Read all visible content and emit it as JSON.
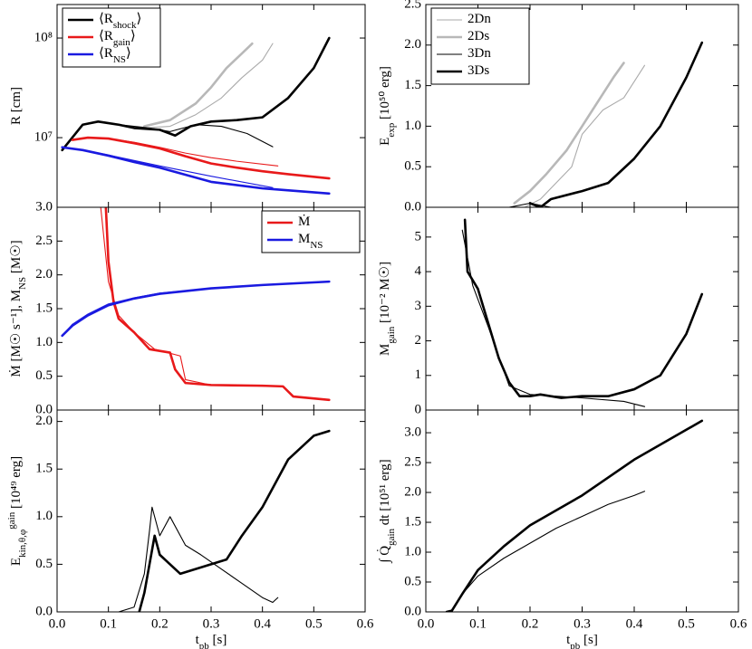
{
  "chart_data": [
    {
      "type": "line",
      "log_y": true,
      "ylabel": [
        {
          "text": "R [cm]"
        }
      ],
      "xlim": [
        0,
        0.6
      ],
      "xticks": [
        0,
        0.1,
        0.2,
        0.3,
        0.4,
        0.5,
        0.6
      ],
      "ylim": [
        2000000,
        217000000
      ],
      "yticks": [
        {
          "value": 10000000,
          "label": "10⁷"
        },
        {
          "value": 100000000,
          "label": "10⁸"
        }
      ],
      "legend": {
        "loc": "upper left",
        "entries": [
          {
            "name": [
              {
                "text": "⟨R"
              },
              {
                "text": "shock",
                "shift": "sub"
              },
              {
                "text": "⟩"
              }
            ],
            "color": "#000000",
            "style": "thick"
          },
          {
            "name": [
              {
                "text": "⟨R"
              },
              {
                "text": "gain",
                "shift": "sub"
              },
              {
                "text": "⟩"
              }
            ],
            "color": "#e8191a",
            "style": "thick"
          },
          {
            "name": [
              {
                "text": "⟨R"
              },
              {
                "text": "NS",
                "shift": "sub"
              },
              {
                "text": "⟩"
              }
            ],
            "color": "#1a1ae0",
            "style": "thick"
          }
        ]
      },
      "series": [
        {
          "color": "#aaaaaa",
          "style": "thin",
          "x": [
            0.17,
            0.22,
            0.27,
            0.32,
            0.36,
            0.4,
            0.42
          ],
          "values": [
            12500000,
            13000000,
            17000000,
            25000000,
            40000000,
            60000000,
            88000000
          ]
        },
        {
          "color": "#b8b8b8",
          "style": "thick",
          "x": [
            0.17,
            0.22,
            0.27,
            0.3,
            0.33,
            0.36,
            0.38
          ],
          "values": [
            13000000,
            15000000,
            22000000,
            32000000,
            50000000,
            70000000,
            88000000
          ]
        },
        {
          "color": "#000000",
          "style": "thin",
          "x": [
            0.01,
            0.05,
            0.08,
            0.12,
            0.18,
            0.22,
            0.27,
            0.32,
            0.37,
            0.42
          ],
          "values": [
            7500000,
            13500000,
            14500000,
            13500000,
            12500000,
            11500000,
            13500000,
            13000000,
            11000000,
            8100000
          ]
        },
        {
          "color": "#000000",
          "style": "thick",
          "x": [
            0.01,
            0.05,
            0.08,
            0.12,
            0.15,
            0.2,
            0.23,
            0.26,
            0.3,
            0.35,
            0.4,
            0.45,
            0.5,
            0.53
          ],
          "values": [
            7500000,
            13500000,
            14500000,
            13500000,
            12500000,
            12000000,
            10500000,
            13000000,
            14500000,
            15000000,
            16000000,
            25000000,
            50000000,
            100000000
          ]
        },
        {
          "color": "#e8191a",
          "style": "thin",
          "x": [
            0.03,
            0.06,
            0.1,
            0.15,
            0.2,
            0.25,
            0.3,
            0.35,
            0.43
          ],
          "values": [
            9500000,
            10000000,
            9800000,
            9000000,
            8000000,
            7000000,
            6300000,
            5800000,
            5200000
          ]
        },
        {
          "color": "#e8191a",
          "style": "thick",
          "x": [
            0.03,
            0.06,
            0.1,
            0.15,
            0.2,
            0.25,
            0.3,
            0.35,
            0.4,
            0.45,
            0.53
          ],
          "values": [
            9500000,
            10000000,
            9800000,
            8800000,
            7800000,
            6500000,
            5500000,
            5000000,
            4600000,
            4300000,
            3900000
          ]
        },
        {
          "color": "#1a1ae0",
          "style": "thin",
          "x": [
            0.01,
            0.05,
            0.1,
            0.15,
            0.2,
            0.3,
            0.42
          ],
          "values": [
            8000000,
            7500000,
            6700000,
            5900000,
            5200000,
            4100000,
            3150000
          ]
        },
        {
          "color": "#1a1ae0",
          "style": "thick",
          "x": [
            0.01,
            0.05,
            0.1,
            0.15,
            0.2,
            0.3,
            0.4,
            0.53
          ],
          "values": [
            8000000,
            7500000,
            6600000,
            5700000,
            5000000,
            3600000,
            3100000,
            2750000
          ]
        }
      ]
    },
    {
      "type": "line",
      "ylabel": [
        {
          "text": "Ṁ [M☉ s⁻¹], M"
        },
        {
          "text": "NS",
          "shift": "sub"
        },
        {
          "text": " [M☉]"
        }
      ],
      "xlim": [
        0,
        0.6
      ],
      "xticks": [
        0,
        0.1,
        0.2,
        0.3,
        0.4,
        0.5,
        0.6
      ],
      "ylim": [
        0,
        3
      ],
      "yticks": [
        {
          "value": 0,
          "label": "0.0"
        },
        {
          "value": 0.5,
          "label": "0.5"
        },
        {
          "value": 1,
          "label": "1.0"
        },
        {
          "value": 1.5,
          "label": "1.5"
        },
        {
          "value": 2,
          "label": "2.0"
        },
        {
          "value": 2.5,
          "label": "2.5"
        },
        {
          "value": 3,
          "label": "3.0"
        }
      ],
      "legend": {
        "loc": "upper right",
        "entries": [
          {
            "name": [
              {
                "text": "Ṁ"
              }
            ],
            "color": "#e8191a",
            "style": "thick"
          },
          {
            "name": [
              {
                "text": "M"
              },
              {
                "text": "NS",
                "shift": "sub"
              }
            ],
            "color": "#1a1ae0",
            "style": "thick"
          }
        ]
      },
      "series": [
        {
          "color": "#e8191a",
          "style": "thin",
          "x": [
            0.085,
            0.1,
            0.12,
            0.15,
            0.19,
            0.24,
            0.25,
            0.3,
            0.42
          ],
          "values": [
            3.0,
            1.9,
            1.4,
            1.15,
            0.9,
            0.8,
            0.45,
            0.37,
            0.35
          ]
        },
        {
          "color": "#e8191a",
          "style": "thick",
          "x": [
            0.095,
            0.1,
            0.11,
            0.12,
            0.15,
            0.18,
            0.22,
            0.23,
            0.25,
            0.3,
            0.4,
            0.44,
            0.46,
            0.53
          ],
          "values": [
            3.0,
            2.2,
            1.6,
            1.35,
            1.15,
            0.9,
            0.85,
            0.6,
            0.4,
            0.37,
            0.36,
            0.35,
            0.2,
            0.15
          ]
        },
        {
          "color": "#1a1ae0",
          "style": "thin",
          "x": [
            0.01,
            0.03,
            0.06,
            0.1,
            0.15,
            0.2,
            0.3,
            0.43
          ],
          "values": [
            1.1,
            1.27,
            1.42,
            1.57,
            1.66,
            1.73,
            1.8,
            1.86
          ]
        },
        {
          "color": "#1a1ae0",
          "style": "thick",
          "x": [
            0.01,
            0.03,
            0.06,
            0.1,
            0.15,
            0.2,
            0.3,
            0.4,
            0.53
          ],
          "values": [
            1.1,
            1.25,
            1.4,
            1.55,
            1.65,
            1.72,
            1.8,
            1.85,
            1.9
          ]
        }
      ]
    },
    {
      "type": "line",
      "ylabel": [
        {
          "text": "E"
        },
        {
          "text": "kin,θ,φ",
          "shift": "sub"
        },
        {
          "text": "gain",
          "shift": "super"
        },
        {
          "text": " [10⁴⁹ erg]"
        }
      ],
      "xlabel": [
        {
          "text": "t"
        },
        {
          "text": "pb",
          "shift": "sub"
        },
        {
          "text": " [s]"
        }
      ],
      "xlim": [
        0,
        0.6
      ],
      "xticks": [
        {
          "value": 0,
          "label": "0.0"
        },
        {
          "value": 0.1,
          "label": "0.1"
        },
        {
          "value": 0.2,
          "label": "0.2"
        },
        {
          "value": 0.3,
          "label": "0.3"
        },
        {
          "value": 0.4,
          "label": "0.4"
        },
        {
          "value": 0.5,
          "label": "0.5"
        },
        {
          "value": 0.6,
          "label": "0.6"
        }
      ],
      "ylim": [
        0,
        2.12
      ],
      "yticks": [
        {
          "value": 0,
          "label": "0.0"
        },
        {
          "value": 0.5,
          "label": "0.5"
        },
        {
          "value": 1,
          "label": "1.0"
        },
        {
          "value": 1.5,
          "label": "1.5"
        },
        {
          "value": 2,
          "label": "2.0"
        }
      ],
      "series": [
        {
          "color": "#000000",
          "style": "thin",
          "x": [
            0.12,
            0.15,
            0.17,
            0.18,
            0.185,
            0.2,
            0.22,
            0.25,
            0.28,
            0.32,
            0.36,
            0.4,
            0.42,
            0.43
          ],
          "values": [
            0,
            0.05,
            0.4,
            0.85,
            1.1,
            0.8,
            1.0,
            0.7,
            0.6,
            0.45,
            0.3,
            0.15,
            0.1,
            0.15
          ]
        },
        {
          "color": "#000000",
          "style": "thick",
          "x": [
            0.16,
            0.17,
            0.18,
            0.19,
            0.2,
            0.22,
            0.24,
            0.27,
            0.3,
            0.33,
            0.36,
            0.4,
            0.43,
            0.45,
            0.48,
            0.5,
            0.53
          ],
          "values": [
            0,
            0.2,
            0.5,
            0.8,
            0.6,
            0.5,
            0.4,
            0.45,
            0.5,
            0.55,
            0.8,
            1.1,
            1.4,
            1.6,
            1.75,
            1.85,
            1.9
          ]
        }
      ]
    },
    {
      "type": "line",
      "ylabel": [
        {
          "text": "E"
        },
        {
          "text": "exp",
          "shift": "sub"
        },
        {
          "text": " [10⁵⁰ erg]"
        }
      ],
      "xlim": [
        0,
        0.6
      ],
      "xticks": [
        0,
        0.1,
        0.2,
        0.3,
        0.4,
        0.5,
        0.6
      ],
      "ylim": [
        0,
        2.5
      ],
      "yticks": [
        {
          "value": 0,
          "label": "0.0"
        },
        {
          "value": 0.5,
          "label": "0.5"
        },
        {
          "value": 1,
          "label": "1.0"
        },
        {
          "value": 1.5,
          "label": "1.5"
        },
        {
          "value": 2,
          "label": "2.0"
        },
        {
          "value": 2.5,
          "label": "2.5"
        }
      ],
      "legend": {
        "loc": "upper left",
        "entries": [
          {
            "name": [
              {
                "text": "2Dn"
              }
            ],
            "color": "#aaaaaa",
            "style": "thin"
          },
          {
            "name": [
              {
                "text": "2Ds"
              }
            ],
            "color": "#b8b8b8",
            "style": "thick"
          },
          {
            "name": [
              {
                "text": "3Dn"
              }
            ],
            "color": "#000000",
            "style": "thin"
          },
          {
            "name": [
              {
                "text": "3Ds"
              }
            ],
            "color": "#000000",
            "style": "thick"
          }
        ]
      },
      "series": [
        {
          "color": "#aaaaaa",
          "style": "thin",
          "x": [
            0.19,
            0.22,
            0.25,
            0.28,
            0.3,
            0.34,
            0.38,
            0.42
          ],
          "values": [
            0,
            0.1,
            0.3,
            0.5,
            0.9,
            1.2,
            1.35,
            1.75
          ]
        },
        {
          "color": "#b8b8b8",
          "style": "thick",
          "x": [
            0.17,
            0.2,
            0.23,
            0.27,
            0.3,
            0.33,
            0.36,
            0.38
          ],
          "values": [
            0.05,
            0.2,
            0.4,
            0.7,
            1.0,
            1.3,
            1.6,
            1.78
          ]
        },
        {
          "color": "#000000",
          "style": "thin",
          "x": [
            0.16,
            0.2,
            0.24
          ],
          "values": [
            0,
            0.05,
            0
          ]
        },
        {
          "color": "#000000",
          "style": "thick",
          "x": [
            0.2,
            0.22,
            0.24,
            0.3,
            0.35,
            0.4,
            0.45,
            0.5,
            0.53
          ],
          "values": [
            0.05,
            0,
            0.1,
            0.2,
            0.3,
            0.6,
            1.0,
            1.6,
            2.03
          ]
        }
      ]
    },
    {
      "type": "line",
      "ylabel": [
        {
          "text": "M"
        },
        {
          "text": "gain",
          "shift": "sub"
        },
        {
          "text": " [10⁻² M☉]"
        }
      ],
      "xlim": [
        0,
        0.6
      ],
      "xticks": [
        0,
        0.1,
        0.2,
        0.3,
        0.4,
        0.5,
        0.6
      ],
      "ylim": [
        0,
        5.86
      ],
      "yticks": [
        0,
        1,
        2,
        3,
        4,
        5
      ],
      "series": [
        {
          "color": "#000000",
          "style": "thin",
          "x": [
            0.07,
            0.09,
            0.12,
            0.16,
            0.2,
            0.25,
            0.3,
            0.38,
            0.42
          ],
          "values": [
            5.2,
            3.6,
            2.4,
            0.7,
            0.45,
            0.4,
            0.35,
            0.25,
            0.1
          ]
        },
        {
          "color": "#000000",
          "style": "thick",
          "x": [
            0.075,
            0.08,
            0.1,
            0.12,
            0.14,
            0.16,
            0.18,
            0.2,
            0.22,
            0.26,
            0.3,
            0.35,
            0.4,
            0.45,
            0.5,
            0.53
          ],
          "values": [
            5.5,
            4.0,
            3.5,
            2.5,
            1.5,
            0.8,
            0.4,
            0.4,
            0.45,
            0.35,
            0.4,
            0.4,
            0.6,
            1.0,
            2.2,
            3.35
          ]
        }
      ]
    },
    {
      "type": "line",
      "ylabel": [
        {
          "text": "∫ Q̇"
        },
        {
          "text": "gain",
          "shift": "sub"
        },
        {
          "text": " dt [10⁵¹ erg]"
        }
      ],
      "xlabel": [
        {
          "text": "t"
        },
        {
          "text": "pb",
          "shift": "sub"
        },
        {
          "text": " [s]"
        }
      ],
      "xlim": [
        0,
        0.6
      ],
      "xticks": [
        {
          "value": 0,
          "label": "0.0"
        },
        {
          "value": 0.1,
          "label": "0.1"
        },
        {
          "value": 0.2,
          "label": "0.2"
        },
        {
          "value": 0.3,
          "label": "0.3"
        },
        {
          "value": 0.4,
          "label": "0.4"
        },
        {
          "value": 0.5,
          "label": "0.5"
        },
        {
          "value": 0.6,
          "label": "0.6"
        }
      ],
      "ylim": [
        0,
        3.38
      ],
      "yticks": [
        {
          "value": 0,
          "label": "0.0"
        },
        {
          "value": 0.5,
          "label": "0.5"
        },
        {
          "value": 1,
          "label": "1.0"
        },
        {
          "value": 1.5,
          "label": "1.5"
        },
        {
          "value": 2,
          "label": "2.0"
        },
        {
          "value": 2.5,
          "label": "2.5"
        },
        {
          "value": 3,
          "label": "3.0"
        }
      ],
      "series": [
        {
          "color": "#000000",
          "style": "thin",
          "x": [
            0.04,
            0.05,
            0.07,
            0.1,
            0.15,
            0.2,
            0.25,
            0.3,
            0.35,
            0.4,
            0.42
          ],
          "values": [
            0,
            0.02,
            0.3,
            0.6,
            0.9,
            1.15,
            1.4,
            1.6,
            1.8,
            1.95,
            2.02
          ]
        },
        {
          "color": "#000000",
          "style": "thick",
          "x": [
            0.04,
            0.05,
            0.07,
            0.1,
            0.15,
            0.2,
            0.25,
            0.3,
            0.35,
            0.4,
            0.45,
            0.5,
            0.53
          ],
          "values": [
            0,
            0.02,
            0.3,
            0.7,
            1.1,
            1.45,
            1.7,
            1.95,
            2.25,
            2.55,
            2.8,
            3.05,
            3.2
          ]
        }
      ]
    }
  ]
}
